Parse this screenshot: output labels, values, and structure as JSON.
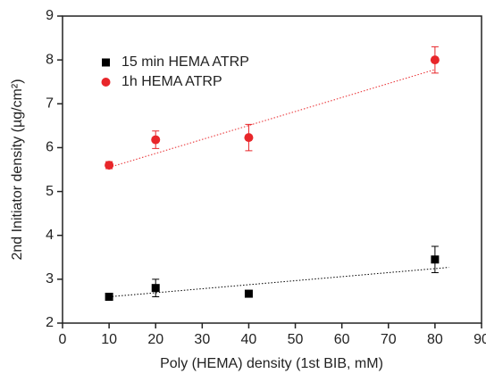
{
  "chart_data": {
    "type": "scatter",
    "x_label": "Poly (HEMA) density (1st BIB, mM)",
    "y_label": "2nd Initiator density (µg/cm²)",
    "xlim": [
      0,
      90
    ],
    "xticks": [
      0,
      10,
      20,
      30,
      40,
      50,
      60,
      70,
      80,
      90
    ],
    "ylim": [
      2,
      9
    ],
    "yticks": [
      2,
      3,
      4,
      5,
      6,
      7,
      8,
      9
    ],
    "series": [
      {
        "name": "15 min HEMA ATRP",
        "color": "#000000",
        "marker": "square",
        "x": [
          10,
          20,
          40,
          80
        ],
        "values": [
          2.6,
          2.8,
          2.67,
          3.45
        ],
        "errors": [
          0.08,
          0.2,
          0.07,
          0.3
        ],
        "trendline": {
          "x": [
            10,
            83
          ],
          "y": [
            2.6,
            3.27
          ]
        }
      },
      {
        "name": "1h HEMA ATRP",
        "color": "#e8262a",
        "marker": "circle",
        "x": [
          10,
          20,
          40,
          80
        ],
        "values": [
          5.6,
          6.18,
          6.23,
          8.0
        ],
        "errors": [
          0.08,
          0.2,
          0.3,
          0.3
        ],
        "trendline": {
          "x": [
            10,
            80
          ],
          "y": [
            5.55,
            7.78
          ]
        }
      }
    ]
  }
}
